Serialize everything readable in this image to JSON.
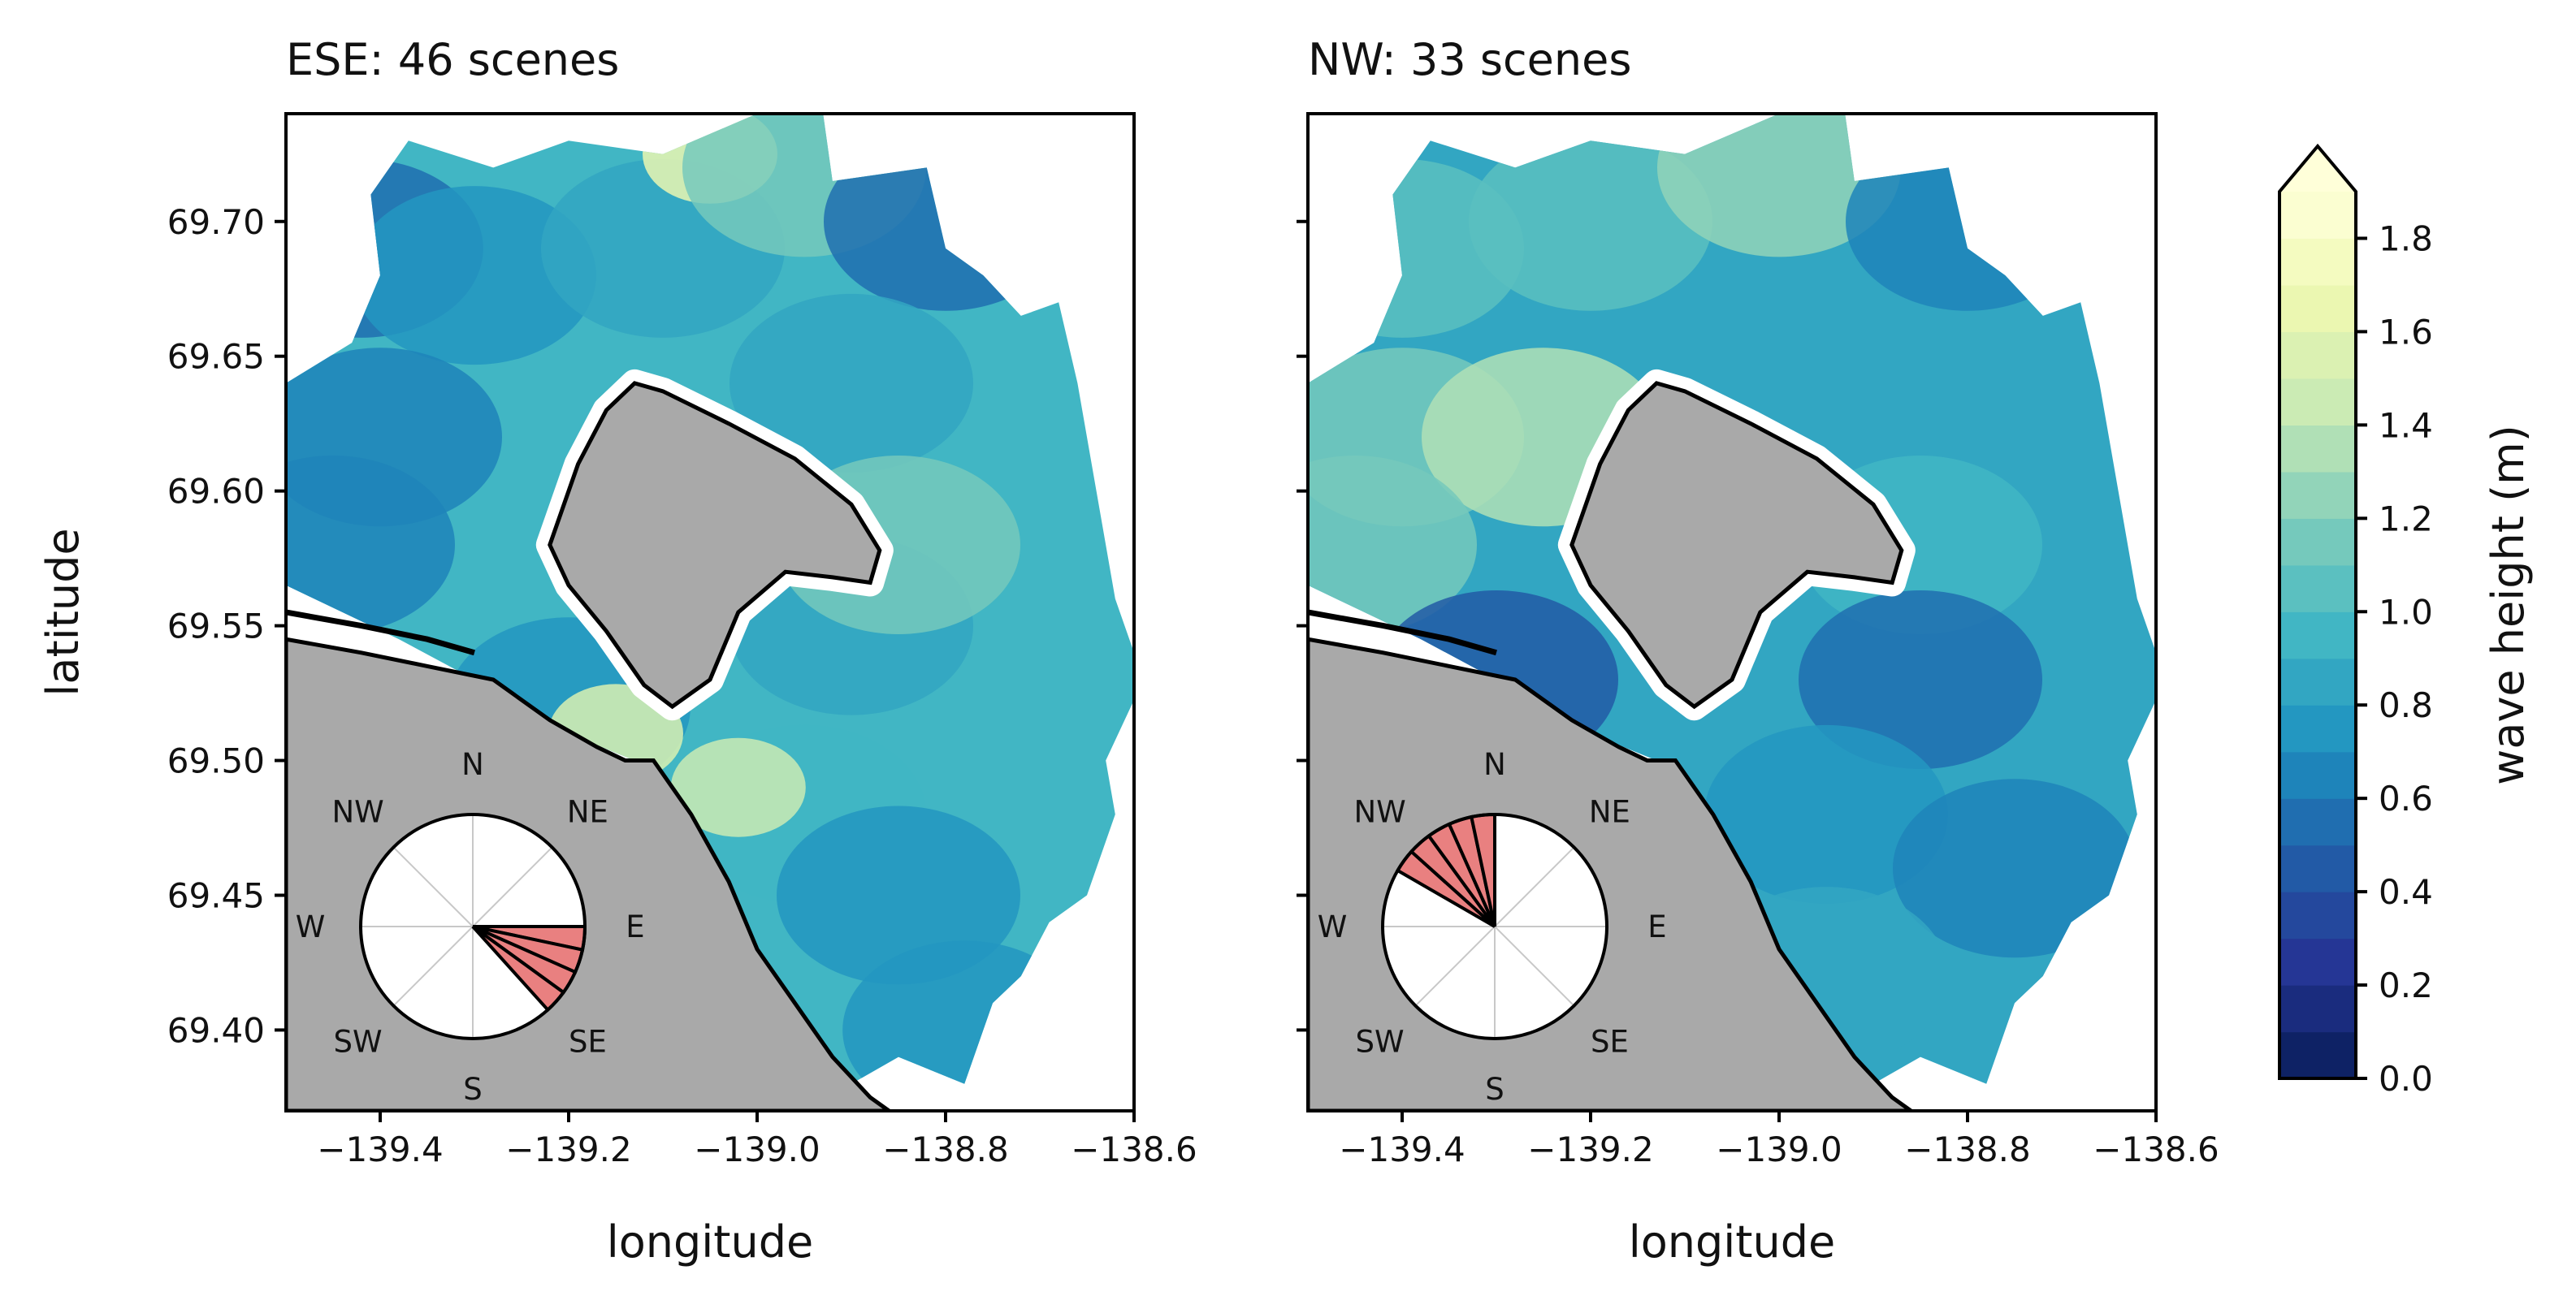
{
  "chart_data": [
    {
      "type": "heatmap",
      "subtype": "filled-contour wave height map with wind-direction rose",
      "title": "ESE: 46 scenes",
      "xlabel": "longitude",
      "ylabel": "latitude",
      "xlim": [
        -139.5,
        -138.6
      ],
      "ylim": [
        69.37,
        69.74
      ],
      "xticks": [
        "−139.4",
        "−139.2",
        "−139.0",
        "−138.8",
        "−138.6"
      ],
      "xtick_values": [
        -139.4,
        -139.2,
        -139.0,
        -138.8,
        -138.6
      ],
      "yticks": [
        "69.40",
        "69.45",
        "69.50",
        "69.55",
        "69.60",
        "69.65",
        "69.70"
      ],
      "ytick_values": [
        69.4,
        69.45,
        69.5,
        69.55,
        69.6,
        69.65,
        69.7
      ],
      "wave_height_regions_m": [
        {
          "lon": -139.42,
          "lat": 69.69,
          "value": 0.55
        },
        {
          "lon": -139.3,
          "lat": 69.68,
          "value": 0.75
        },
        {
          "lon": -139.1,
          "lat": 69.69,
          "value": 0.85
        },
        {
          "lon": -139.05,
          "lat": 69.725,
          "value": 1.65
        },
        {
          "lon": -138.95,
          "lat": 69.72,
          "value": 1.1
        },
        {
          "lon": -138.8,
          "lat": 69.7,
          "value": 0.55
        },
        {
          "lon": -138.9,
          "lat": 69.64,
          "value": 0.8
        },
        {
          "lon": -139.4,
          "lat": 69.62,
          "value": 0.65
        },
        {
          "lon": -139.45,
          "lat": 69.58,
          "value": 0.6
        },
        {
          "lon": -139.2,
          "lat": 69.52,
          "value": 0.7
        },
        {
          "lon": -139.15,
          "lat": 69.51,
          "value": 1.5
        },
        {
          "lon": -138.9,
          "lat": 69.55,
          "value": 0.85
        },
        {
          "lon": -138.85,
          "lat": 69.58,
          "value": 1.1
        },
        {
          "lon": -138.95,
          "lat": 69.48,
          "value": 0.9
        },
        {
          "lon": -139.02,
          "lat": 69.49,
          "value": 1.4
        },
        {
          "lon": -138.85,
          "lat": 69.45,
          "value": 0.75
        },
        {
          "lon": -138.78,
          "lat": 69.4,
          "value": 0.7
        }
      ],
      "wind_rose": {
        "labels": [
          "N",
          "NE",
          "E",
          "SE",
          "S",
          "SW",
          "W",
          "NW"
        ],
        "highlighted_sectors_deg": [
          [
            90,
            102
          ],
          [
            102,
            114
          ],
          [
            114,
            126
          ],
          [
            126,
            138
          ]
        ],
        "highlight_color": "#e98080"
      }
    },
    {
      "type": "heatmap",
      "subtype": "filled-contour wave height map with wind-direction rose",
      "title": "NW: 33 scenes",
      "xlabel": "longitude",
      "ylabel": "",
      "xlim": [
        -139.5,
        -138.6
      ],
      "ylim": [
        69.37,
        69.74
      ],
      "xticks": [
        "−139.4",
        "−139.2",
        "−139.0",
        "−138.8",
        "−138.6"
      ],
      "xtick_values": [
        -139.4,
        -139.2,
        -139.0,
        -138.8,
        -138.6
      ],
      "wave_height_regions_m": [
        {
          "lon": -139.4,
          "lat": 69.69,
          "value": 1.05
        },
        {
          "lon": -139.2,
          "lat": 69.7,
          "value": 1.0
        },
        {
          "lon": -139.0,
          "lat": 69.72,
          "value": 1.25
        },
        {
          "lon": -138.8,
          "lat": 69.7,
          "value": 0.65
        },
        {
          "lon": -139.4,
          "lat": 69.62,
          "value": 1.1
        },
        {
          "lon": -139.25,
          "lat": 69.62,
          "value": 1.3
        },
        {
          "lon": -139.45,
          "lat": 69.58,
          "value": 1.15
        },
        {
          "lon": -139.3,
          "lat": 69.53,
          "value": 0.45
        },
        {
          "lon": -138.85,
          "lat": 69.58,
          "value": 0.9
        },
        {
          "lon": -138.85,
          "lat": 69.53,
          "value": 0.55
        },
        {
          "lon": -138.95,
          "lat": 69.48,
          "value": 0.7
        },
        {
          "lon": -138.75,
          "lat": 69.46,
          "value": 0.65
        },
        {
          "lon": -138.95,
          "lat": 69.42,
          "value": 0.85
        }
      ],
      "wind_rose": {
        "labels": [
          "N",
          "NE",
          "E",
          "SE",
          "S",
          "SW",
          "W",
          "NW"
        ],
        "highlighted_sectors_deg": [
          [
            300,
            312
          ],
          [
            312,
            324
          ],
          [
            324,
            336
          ],
          [
            336,
            348
          ],
          [
            348,
            360
          ]
        ],
        "highlight_color": "#e98080"
      }
    }
  ],
  "colorbar": {
    "label": "wave height (m)",
    "ticks": [
      "0.0",
      "0.2",
      "0.4",
      "0.6",
      "0.8",
      "1.0",
      "1.2",
      "1.4",
      "1.6",
      "1.8"
    ],
    "tick_values": [
      0.0,
      0.2,
      0.4,
      0.6,
      0.8,
      1.0,
      1.2,
      1.4,
      1.6,
      1.8
    ],
    "range": [
      0.0,
      1.9
    ],
    "levels": 19,
    "extend": "max",
    "colormap": "YlGnBu_r"
  },
  "colors": {
    "land": "#a9a9a9",
    "coastline": "#000000",
    "rose_highlight": "#e98080"
  }
}
